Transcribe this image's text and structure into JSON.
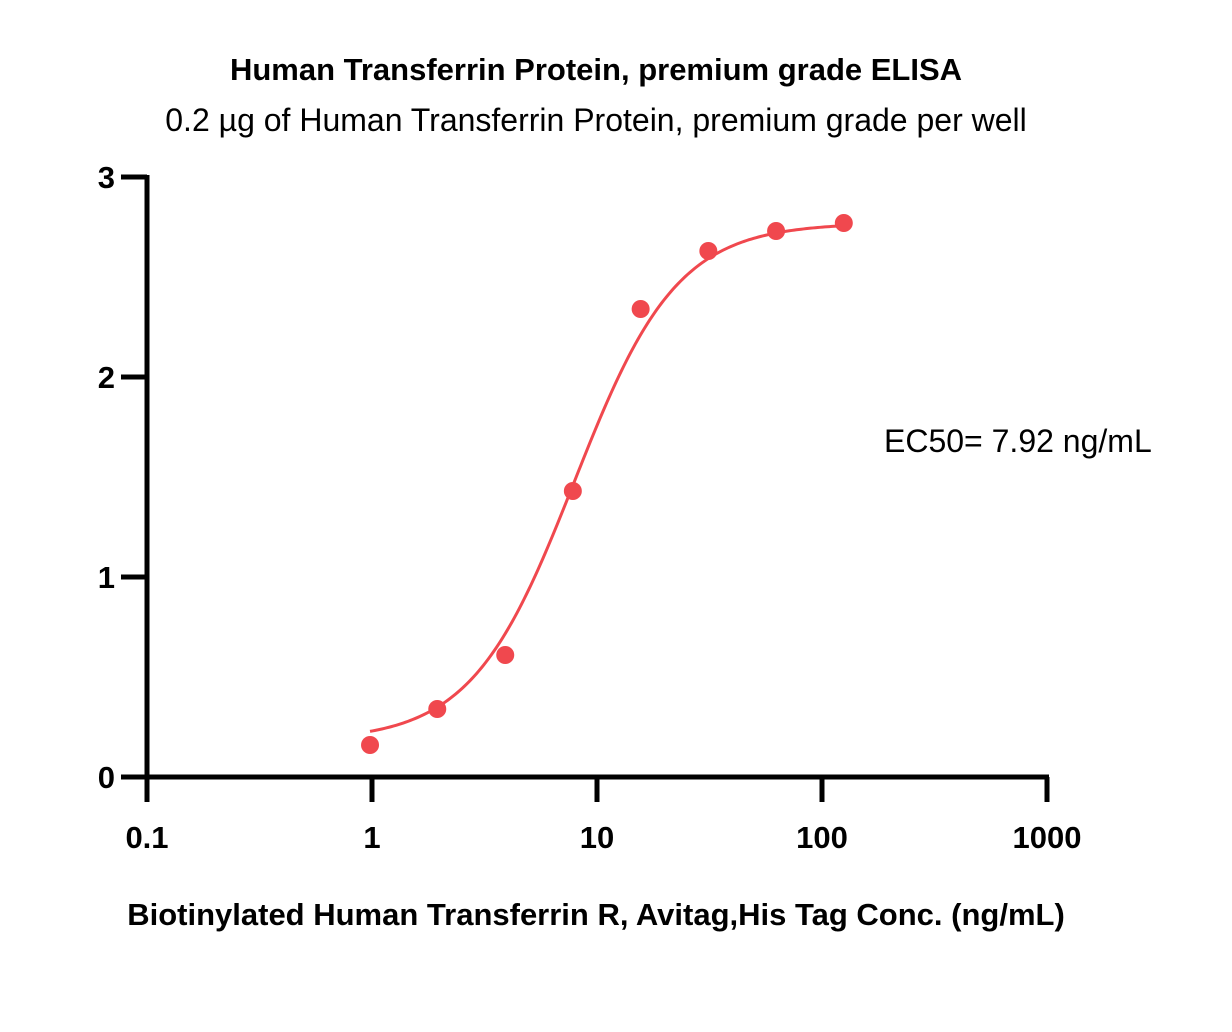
{
  "chart_data": {
    "type": "scatter",
    "title": "Human Transferrin Protein, premium grade ELISA",
    "subtitle": "0.2 µg of Human Transferrin Protein, premium grade per well",
    "xlabel": "Biotinylated Human Transferrin R, Avitag,His Tag Conc. (ng/mL)",
    "ylabel": "",
    "xscale": "log",
    "xlim": [
      0.1,
      1000
    ],
    "ylim": [
      0,
      3
    ],
    "x_ticks": [
      0.1,
      1,
      10,
      100,
      1000
    ],
    "x_tick_labels": [
      "0.1",
      "1",
      "10",
      "100",
      "1000"
    ],
    "y_ticks": [
      0,
      1,
      2,
      3
    ],
    "y_tick_labels": [
      "0",
      "1",
      "2",
      "3"
    ],
    "grid": false,
    "series": [
      {
        "x": [
          0.98,
          1.95,
          3.91,
          7.81,
          15.63,
          31.25,
          62.5,
          125
        ],
        "values": [
          0.16,
          0.34,
          0.61,
          1.43,
          2.34,
          2.63,
          2.73,
          2.77
        ],
        "color": "#f0484e",
        "fit": "four-parameter logistic"
      }
    ],
    "fit_params": {
      "bottom": 0.18,
      "top": 2.77,
      "ec50": 7.92,
      "hill": 1.9
    },
    "annotations": [
      "EC50= 7.92 ng/mL"
    ]
  }
}
